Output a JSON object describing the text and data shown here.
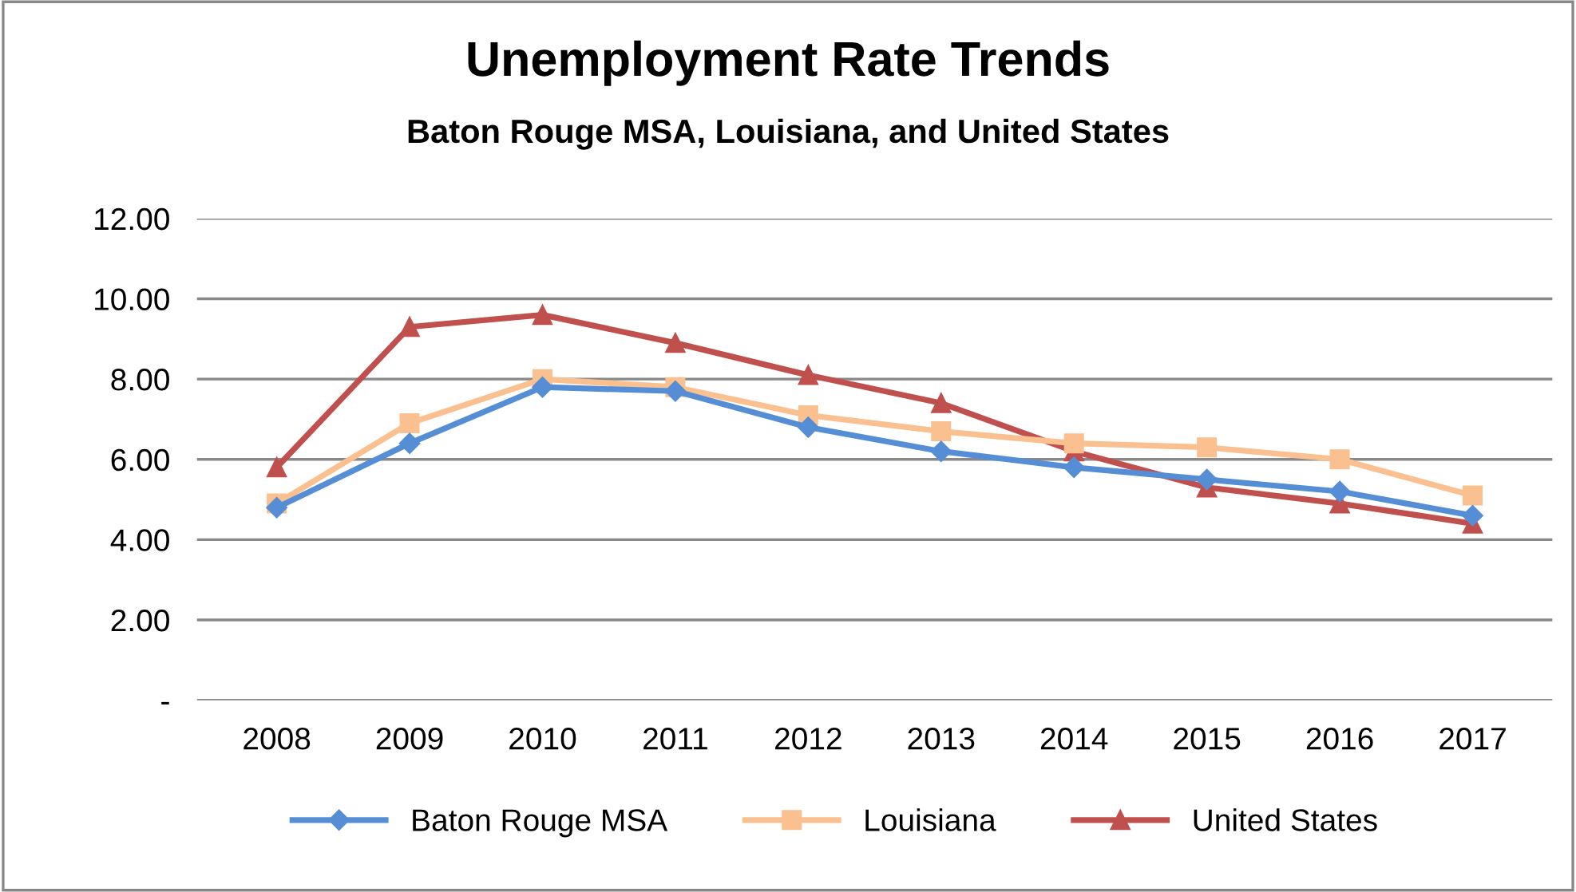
{
  "chart_data": {
    "type": "line",
    "title": "Unemployment Rate Trends",
    "subtitle": "Baton Rouge MSA, Louisiana, and United States",
    "categories": [
      "2008",
      "2009",
      "2010",
      "2011",
      "2012",
      "2013",
      "2014",
      "2015",
      "2016",
      "2017"
    ],
    "series": [
      {
        "name": "Baton Rouge MSA",
        "color": "#558ed5",
        "marker": "diamond",
        "values": [
          4.8,
          6.4,
          7.8,
          7.7,
          6.8,
          6.2,
          5.8,
          5.5,
          5.2,
          4.6
        ]
      },
      {
        "name": "Louisiana",
        "color": "#fac090",
        "marker": "square",
        "values": [
          4.9,
          6.9,
          8.0,
          7.8,
          7.1,
          6.7,
          6.4,
          6.3,
          6.0,
          5.1
        ]
      },
      {
        "name": "United States",
        "color": "#c0504d",
        "marker": "triangle",
        "values": [
          5.8,
          9.3,
          9.6,
          8.9,
          8.1,
          7.4,
          6.2,
          5.3,
          4.9,
          4.4
        ]
      }
    ],
    "ylim": [
      0,
      12
    ],
    "yticks": [
      {
        "value": 0,
        "label": "-"
      },
      {
        "value": 2,
        "label": "2.00"
      },
      {
        "value": 4,
        "label": "4.00"
      },
      {
        "value": 6,
        "label": "6.00"
      },
      {
        "value": 8,
        "label": "8.00"
      },
      {
        "value": 10,
        "label": "10.00"
      },
      {
        "value": 12,
        "label": "12.00"
      }
    ],
    "grid": "y",
    "legend": "bottom",
    "line_style": "solid"
  }
}
